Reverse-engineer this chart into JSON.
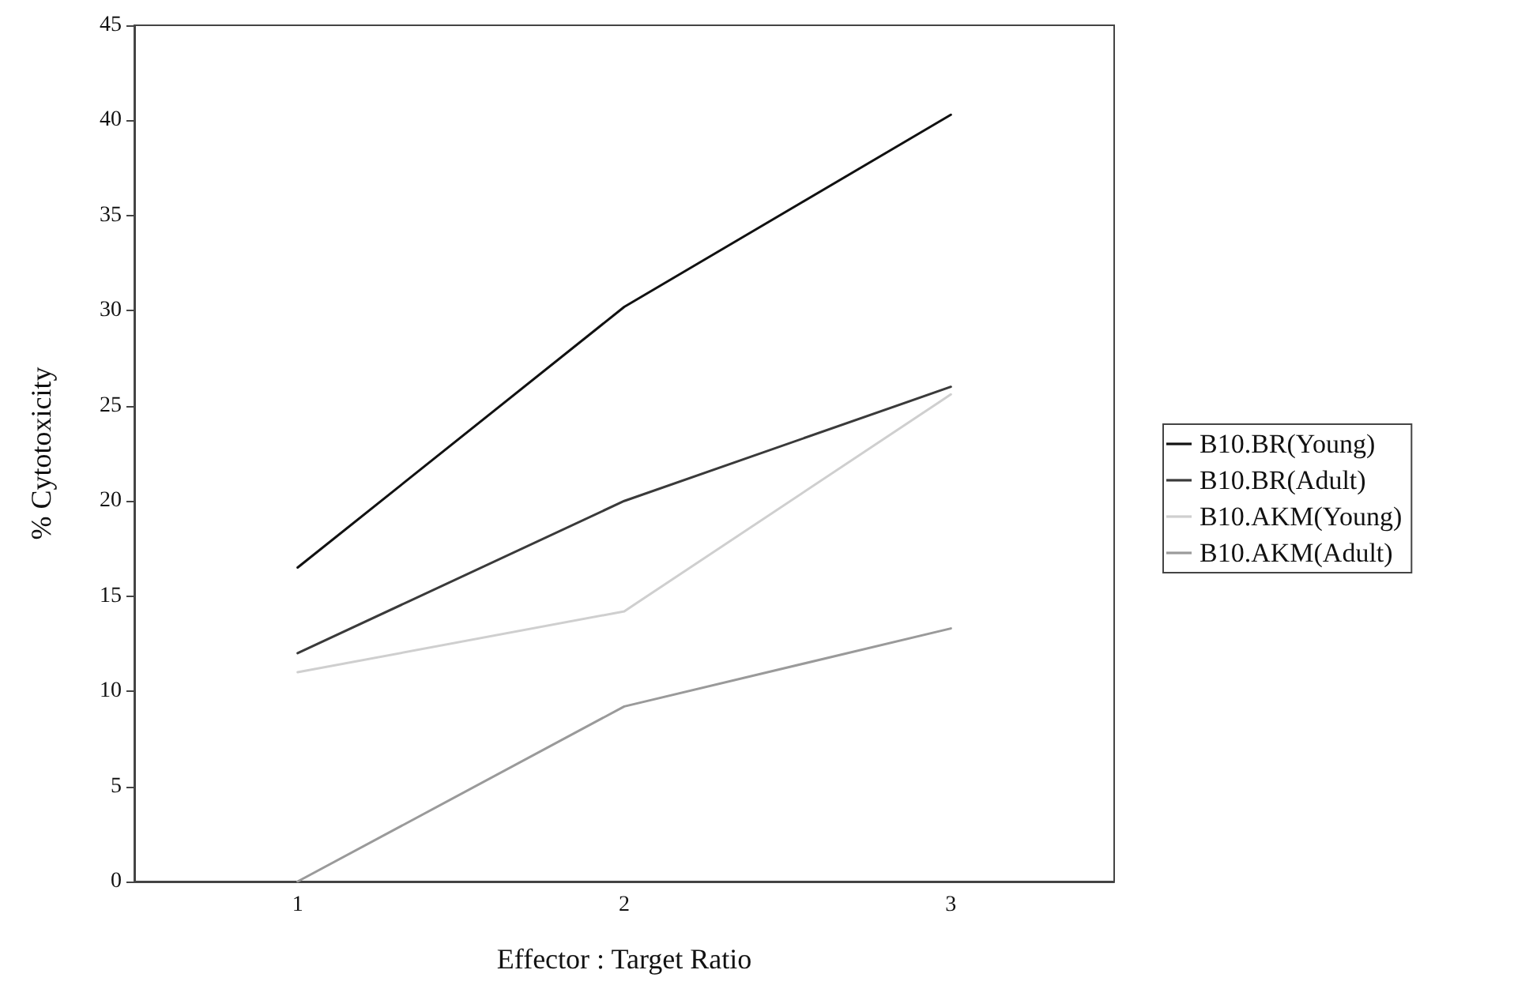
{
  "chart_data": {
    "type": "line",
    "xlabel": "Effector : Target Ratio",
    "ylabel": "% Cytotoxicity",
    "categories": [
      "1",
      "2",
      "3"
    ],
    "series": [
      {
        "name": "B10.BR(Young)",
        "color": "#111111",
        "values": [
          16.5,
          30.2,
          40.3
        ]
      },
      {
        "name": "B10.BR(Adult)",
        "color": "#3a3a3a",
        "values": [
          12,
          20,
          26
        ]
      },
      {
        "name": "B10.AKM(Young)",
        "color": "#cfcfcf",
        "values": [
          11,
          14.2,
          25.6
        ]
      },
      {
        "name": "B10.AKM(Adult)",
        "color": "#9a9a9a",
        "values": [
          0,
          9.2,
          13.3
        ]
      }
    ],
    "ylim": [
      0,
      45
    ],
    "yticks": [
      0,
      5,
      10,
      15,
      20,
      25,
      30,
      35,
      40,
      45
    ],
    "grid": false,
    "legend": "right",
    "marker": "none",
    "line_style": "solid"
  }
}
